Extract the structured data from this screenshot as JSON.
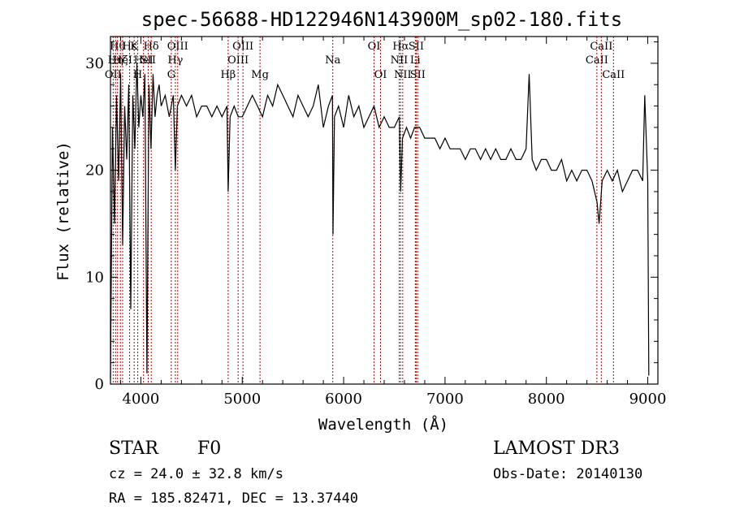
{
  "chart_data": {
    "type": "line",
    "title": "spec-56688-HD122946N143900M_sp02-180.fits",
    "xlabel": "Wavelength (Å)",
    "ylabel": "Flux (relative)",
    "xlim": [
      3700,
      9100
    ],
    "ylim": [
      0,
      32.5
    ],
    "xticks": [
      4000,
      5000,
      6000,
      7000,
      8000,
      9000
    ],
    "yticks": [
      0,
      10,
      20,
      30
    ],
    "xtick_labels": [
      "4000",
      "5000",
      "6000",
      "7000",
      "8000",
      "9000"
    ],
    "ytick_labels": [
      "0",
      "10",
      "20",
      "30"
    ],
    "series": [
      {
        "name": "flux",
        "x": [
          3700,
          3720,
          3740,
          3760,
          3780,
          3800,
          3820,
          3840,
          3860,
          3880,
          3900,
          3920,
          3940,
          3960,
          3980,
          4000,
          4020,
          4040,
          4060,
          4080,
          4100,
          4120,
          4140,
          4160,
          4180,
          4200,
          4240,
          4280,
          4320,
          4340,
          4360,
          4400,
          4450,
          4500,
          4550,
          4600,
          4650,
          4700,
          4750,
          4800,
          4850,
          4861,
          4880,
          4920,
          4960,
          5000,
          5050,
          5100,
          5150,
          5200,
          5250,
          5300,
          5350,
          5400,
          5450,
          5500,
          5550,
          5600,
          5650,
          5700,
          5750,
          5800,
          5850,
          5890,
          5895,
          5910,
          5950,
          6000,
          6050,
          6100,
          6150,
          6200,
          6250,
          6300,
          6350,
          6400,
          6450,
          6500,
          6550,
          6563,
          6580,
          6620,
          6660,
          6700,
          6750,
          6800,
          6850,
          6900,
          6950,
          7000,
          7050,
          7100,
          7150,
          7200,
          7250,
          7300,
          7350,
          7400,
          7450,
          7500,
          7550,
          7600,
          7650,
          7700,
          7750,
          7800,
          7830,
          7860,
          7900,
          7950,
          8000,
          8050,
          8100,
          8150,
          8200,
          8250,
          8300,
          8350,
          8400,
          8450,
          8500,
          8520,
          8550,
          8600,
          8650,
          8700,
          8750,
          8800,
          8850,
          8900,
          8950,
          8970,
          9000,
          9010
        ],
        "y": [
          0.5,
          24,
          15,
          27,
          19,
          29,
          13,
          26,
          21,
          28,
          7,
          27,
          22,
          30,
          24,
          27,
          25,
          29,
          1,
          28,
          22,
          29,
          25,
          27,
          28,
          26,
          27,
          25,
          27,
          20,
          26,
          27,
          26,
          27,
          25,
          26,
          26,
          25,
          26,
          25,
          26,
          18,
          25,
          26,
          25,
          25,
          26,
          27,
          26,
          25,
          27,
          26,
          28,
          27,
          26,
          25,
          27,
          26,
          25,
          26,
          28,
          24,
          26,
          27,
          14,
          25,
          26,
          24,
          27,
          25,
          26,
          24,
          25,
          26,
          24,
          25,
          24,
          24,
          25,
          18,
          23,
          24,
          23,
          24,
          24,
          23,
          23,
          23,
          22,
          23,
          22,
          22,
          22,
          21,
          22,
          22,
          21,
          22,
          21,
          22,
          21,
          21,
          22,
          21,
          21,
          22,
          29,
          21,
          20,
          21,
          21,
          20,
          20,
          21,
          19,
          20,
          19,
          20,
          20,
          19,
          17,
          15,
          19,
          20,
          19,
          20,
          18,
          19,
          20,
          20,
          19,
          27,
          19,
          0.8
        ]
      }
    ],
    "line_marks": [
      {
        "wavelength": 3727,
        "label": "OII",
        "row": 2
      },
      {
        "wavelength": 3750,
        "label": "Hη",
        "row": 1
      },
      {
        "wavelength": 3770,
        "label": "Hθ",
        "row": 0
      },
      {
        "wavelength": 3798,
        "label": "Hζ",
        "row": 1
      },
      {
        "wavelength": 3820,
        "label": "HeI",
        "row": 1
      },
      {
        "wavelength": 3889,
        "label": "Hε",
        "row": 0
      },
      {
        "wavelength": 3934,
        "label": "K",
        "row": 0
      },
      {
        "wavelength": 3969,
        "label": "H",
        "row": 2
      },
      {
        "wavelength": 4026,
        "label": "HeI",
        "row": 1
      },
      {
        "wavelength": 4072,
        "label": "SII",
        "row": 1
      },
      {
        "wavelength": 4102,
        "label": "Hδ",
        "row": 0
      },
      {
        "wavelength": 4300,
        "label": "G",
        "row": 2
      },
      {
        "wavelength": 4340,
        "label": "Hγ",
        "row": 1
      },
      {
        "wavelength": 4363,
        "label": "OIII",
        "row": 0
      },
      {
        "wavelength": 4861,
        "label": "Hβ",
        "row": 2
      },
      {
        "wavelength": 4959,
        "label": "OIII",
        "row": 1
      },
      {
        "wavelength": 5007,
        "label": "OIII",
        "row": 0
      },
      {
        "wavelength": 5175,
        "label": "Mg",
        "row": 2
      },
      {
        "wavelength": 5893,
        "label": "Na",
        "row": 1
      },
      {
        "wavelength": 6300,
        "label": "OI",
        "row": 0
      },
      {
        "wavelength": 6364,
        "label": "OI",
        "row": 2
      },
      {
        "wavelength": 6548,
        "label": "NII",
        "row": 1
      },
      {
        "wavelength": 6563,
        "label": "Hα",
        "row": 0
      },
      {
        "wavelength": 6583,
        "label": "NII",
        "row": 2
      },
      {
        "wavelength": 6707,
        "label": "Li",
        "row": 1
      },
      {
        "wavelength": 6716,
        "label": "SII",
        "row": 0
      },
      {
        "wavelength": 6731,
        "label": "SII",
        "row": 2
      },
      {
        "wavelength": 8498,
        "label": "CaII",
        "row": 1
      },
      {
        "wavelength": 8542,
        "label": "CaII",
        "row": 0
      },
      {
        "wavelength": 8662,
        "label": "CaII",
        "row": 2
      }
    ]
  },
  "info": {
    "object_class": "STAR",
    "subclass": "F0",
    "survey": "LAMOST DR3",
    "cz": "cz = 24.0 ± 32.8 km/s",
    "obs_date": "Obs-Date: 20140130",
    "coords": "RA = 185.82471, DEC =  13.37440"
  },
  "colors": {
    "line_mark": "#c00000",
    "spectrum": "#000000"
  }
}
